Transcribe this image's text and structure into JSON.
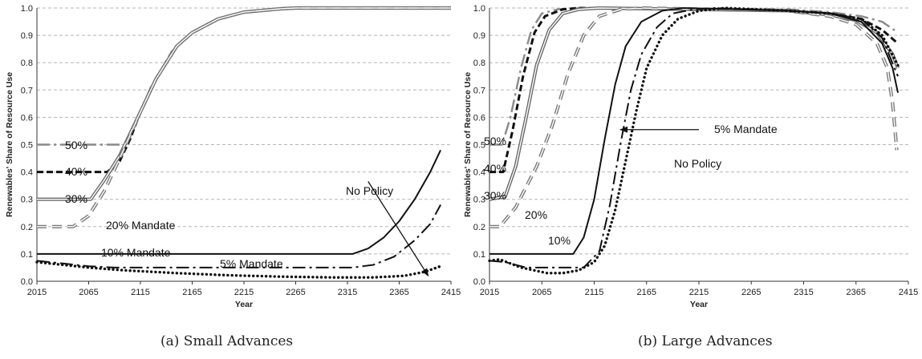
{
  "chart_data": [
    {
      "id": "a",
      "type": "line",
      "caption": "(a)  Small Advances",
      "xlabel": "Year",
      "ylabel": "Renewables' Share of Resource Use",
      "xlim": [
        2015,
        2415
      ],
      "ylim": [
        0,
        1
      ],
      "xticks": [
        "2015",
        "2065",
        "2115",
        "2165",
        "2215",
        "2265",
        "2315",
        "2365",
        "2415"
      ],
      "yticks": [
        "0.0",
        "0.1",
        "0.2",
        "0.3",
        "0.4",
        "0.5",
        "0.6",
        "0.7",
        "0.8",
        "0.9",
        "1.0"
      ],
      "grid": true,
      "annotations": [
        "50%",
        "40%",
        "30%",
        "20% Mandate",
        "10% Mandate",
        "5% Mandate",
        "No Policy"
      ],
      "series": [
        {
          "style": "gray-dashdot",
          "points": [
            [
              2015,
              0.5
            ],
            [
              2093,
              0.5
            ],
            [
              2100,
              0.5
            ],
            [
              2110,
              0.58
            ],
            [
              2125,
              0.71
            ],
            [
              2145,
              0.84
            ],
            [
              2165,
              0.91
            ],
            [
              2190,
              0.96
            ],
            [
              2215,
              0.985
            ],
            [
              2240,
              0.995
            ],
            [
              2265,
              1.0
            ],
            [
              2415,
              1.0
            ]
          ]
        },
        {
          "style": "black-dash",
          "points": [
            [
              2015,
              0.4
            ],
            [
              2083,
              0.4
            ],
            [
              2095,
              0.44
            ],
            [
              2105,
              0.52
            ],
            [
              2115,
              0.62
            ],
            [
              2130,
              0.74
            ],
            [
              2150,
              0.86
            ],
            [
              2165,
              0.91
            ],
            [
              2190,
              0.96
            ],
            [
              2215,
              0.985
            ],
            [
              2250,
              0.997
            ],
            [
              2265,
              1.0
            ],
            [
              2415,
              1.0
            ]
          ]
        },
        {
          "style": "gray-double",
          "points": [
            [
              2015,
              0.3
            ],
            [
              2067,
              0.3
            ],
            [
              2080,
              0.37
            ],
            [
              2095,
              0.46
            ],
            [
              2115,
              0.62
            ],
            [
              2130,
              0.74
            ],
            [
              2150,
              0.86
            ],
            [
              2165,
              0.91
            ],
            [
              2190,
              0.96
            ],
            [
              2215,
              0.985
            ],
            [
              2250,
              0.997
            ],
            [
              2265,
              1.0
            ],
            [
              2415,
              1.0
            ]
          ]
        },
        {
          "style": "gray-dash",
          "points": [
            [
              2015,
              0.2
            ],
            [
              2050,
              0.2
            ],
            [
              2065,
              0.24
            ],
            [
              2080,
              0.33
            ],
            [
              2095,
              0.45
            ],
            [
              2115,
              0.62
            ],
            [
              2130,
              0.74
            ],
            [
              2150,
              0.86
            ],
            [
              2165,
              0.91
            ],
            [
              2190,
              0.96
            ],
            [
              2215,
              0.985
            ],
            [
              2250,
              0.997
            ],
            [
              2265,
              1.0
            ],
            [
              2415,
              1.0
            ]
          ]
        },
        {
          "style": "black-solid",
          "points": [
            [
              2015,
              0.1
            ],
            [
              2320,
              0.1
            ],
            [
              2335,
              0.12
            ],
            [
              2350,
              0.16
            ],
            [
              2365,
              0.22
            ],
            [
              2380,
              0.3
            ],
            [
              2395,
              0.4
            ],
            [
              2405,
              0.48
            ]
          ]
        },
        {
          "style": "black-dashdot",
          "points": [
            [
              2015,
              0.075
            ],
            [
              2040,
              0.065
            ],
            [
              2065,
              0.055
            ],
            [
              2090,
              0.05
            ],
            [
              2150,
              0.05
            ],
            [
              2290,
              0.05
            ],
            [
              2320,
              0.05
            ],
            [
              2340,
              0.06
            ],
            [
              2360,
              0.09
            ],
            [
              2380,
              0.15
            ],
            [
              2395,
              0.21
            ],
            [
              2405,
              0.28
            ]
          ]
        },
        {
          "style": "black-dot",
          "points": [
            [
              2015,
              0.07
            ],
            [
              2040,
              0.06
            ],
            [
              2065,
              0.05
            ],
            [
              2100,
              0.04
            ],
            [
              2150,
              0.03
            ],
            [
              2200,
              0.022
            ],
            [
              2250,
              0.017
            ],
            [
              2300,
              0.014
            ],
            [
              2340,
              0.014
            ],
            [
              2370,
              0.02
            ],
            [
              2390,
              0.035
            ],
            [
              2405,
              0.055
            ]
          ]
        }
      ]
    },
    {
      "id": "b",
      "type": "line",
      "caption": "(b)  Large Advances",
      "xlabel": "Year",
      "ylabel": "Renewables' Share of Resource Use",
      "xlim": [
        2015,
        2415
      ],
      "ylim": [
        0,
        1
      ],
      "xticks": [
        "2015",
        "2065",
        "2115",
        "2165",
        "2215",
        "2265",
        "2315",
        "2365",
        "2415"
      ],
      "yticks": [
        "0.0",
        "0.1",
        "0.2",
        "0.3",
        "0.4",
        "0.5",
        "0.6",
        "0.7",
        "0.8",
        "0.9",
        "1.0"
      ],
      "grid": true,
      "annotations": [
        "50%",
        "40%",
        "30%",
        "20%",
        "10%",
        "5% Mandate",
        "No Policy"
      ],
      "series": [
        {
          "style": "gray-dashdot",
          "points": [
            [
              2015,
              0.5
            ],
            [
              2027,
              0.5
            ],
            [
              2035,
              0.6
            ],
            [
              2045,
              0.78
            ],
            [
              2055,
              0.92
            ],
            [
              2065,
              0.98
            ],
            [
              2080,
              0.995
            ],
            [
              2100,
              1.0
            ],
            [
              2300,
              0.995
            ],
            [
              2340,
              0.985
            ],
            [
              2370,
              0.97
            ],
            [
              2390,
              0.95
            ],
            [
              2405,
              0.91
            ]
          ]
        },
        {
          "style": "black-dash",
          "points": [
            [
              2015,
              0.4
            ],
            [
              2028,
              0.4
            ],
            [
              2037,
              0.55
            ],
            [
              2047,
              0.75
            ],
            [
              2058,
              0.91
            ],
            [
              2068,
              0.97
            ],
            [
              2085,
              0.995
            ],
            [
              2100,
              1.0
            ],
            [
              2300,
              0.99
            ],
            [
              2340,
              0.98
            ],
            [
              2370,
              0.96
            ],
            [
              2390,
              0.92
            ],
            [
              2405,
              0.87
            ]
          ]
        },
        {
          "style": "gray-double",
          "points": [
            [
              2015,
              0.3
            ],
            [
              2030,
              0.31
            ],
            [
              2040,
              0.42
            ],
            [
              2050,
              0.6
            ],
            [
              2060,
              0.79
            ],
            [
              2072,
              0.92
            ],
            [
              2085,
              0.98
            ],
            [
              2100,
              0.995
            ],
            [
              2120,
              1.0
            ],
            [
              2300,
              0.99
            ],
            [
              2340,
              0.975
            ],
            [
              2365,
              0.955
            ],
            [
              2385,
              0.91
            ],
            [
              2400,
              0.83
            ],
            [
              2405,
              0.78
            ]
          ]
        },
        {
          "style": "gray-dash",
          "points": [
            [
              2015,
              0.2
            ],
            [
              2025,
              0.2
            ],
            [
              2040,
              0.27
            ],
            [
              2060,
              0.42
            ],
            [
              2075,
              0.57
            ],
            [
              2090,
              0.76
            ],
            [
              2105,
              0.9
            ],
            [
              2120,
              0.97
            ],
            [
              2140,
              0.995
            ],
            [
              2160,
              1.0
            ],
            [
              2300,
              0.99
            ],
            [
              2340,
              0.97
            ],
            [
              2365,
              0.94
            ],
            [
              2385,
              0.87
            ],
            [
              2395,
              0.78
            ],
            [
              2400,
              0.65
            ],
            [
              2404,
              0.48
            ]
          ]
        },
        {
          "style": "black-solid",
          "points": [
            [
              2015,
              0.1
            ],
            [
              2095,
              0.1
            ],
            [
              2105,
              0.16
            ],
            [
              2115,
              0.3
            ],
            [
              2125,
              0.52
            ],
            [
              2135,
              0.72
            ],
            [
              2145,
              0.86
            ],
            [
              2160,
              0.95
            ],
            [
              2180,
              0.99
            ],
            [
              2200,
              1.0
            ],
            [
              2300,
              0.99
            ],
            [
              2340,
              0.98
            ],
            [
              2370,
              0.95
            ],
            [
              2390,
              0.87
            ],
            [
              2400,
              0.78
            ],
            [
              2405,
              0.69
            ]
          ]
        },
        {
          "style": "black-dashdot",
          "points": [
            [
              2015,
              0.075
            ],
            [
              2030,
              0.07
            ],
            [
              2050,
              0.05
            ],
            [
              2105,
              0.05
            ],
            [
              2120,
              0.11
            ],
            [
              2130,
              0.28
            ],
            [
              2140,
              0.5
            ],
            [
              2150,
              0.7
            ],
            [
              2160,
              0.83
            ],
            [
              2175,
              0.93
            ],
            [
              2190,
              0.98
            ],
            [
              2210,
              0.995
            ],
            [
              2230,
              1.0
            ],
            [
              2300,
              0.99
            ],
            [
              2340,
              0.98
            ],
            [
              2370,
              0.96
            ],
            [
              2390,
              0.89
            ],
            [
              2405,
              0.75
            ]
          ]
        },
        {
          "style": "black-dot",
          "points": [
            [
              2015,
              0.075
            ],
            [
              2025,
              0.08
            ],
            [
              2045,
              0.05
            ],
            [
              2070,
              0.03
            ],
            [
              2085,
              0.03
            ],
            [
              2100,
              0.04
            ],
            [
              2115,
              0.07
            ],
            [
              2125,
              0.13
            ],
            [
              2135,
              0.26
            ],
            [
              2145,
              0.44
            ],
            [
              2155,
              0.62
            ],
            [
              2165,
              0.78
            ],
            [
              2180,
              0.9
            ],
            [
              2195,
              0.96
            ],
            [
              2215,
              0.99
            ],
            [
              2240,
              1.0
            ],
            [
              2300,
              0.99
            ],
            [
              2340,
              0.98
            ],
            [
              2370,
              0.96
            ],
            [
              2390,
              0.9
            ],
            [
              2405,
              0.79
            ]
          ]
        }
      ]
    }
  ]
}
